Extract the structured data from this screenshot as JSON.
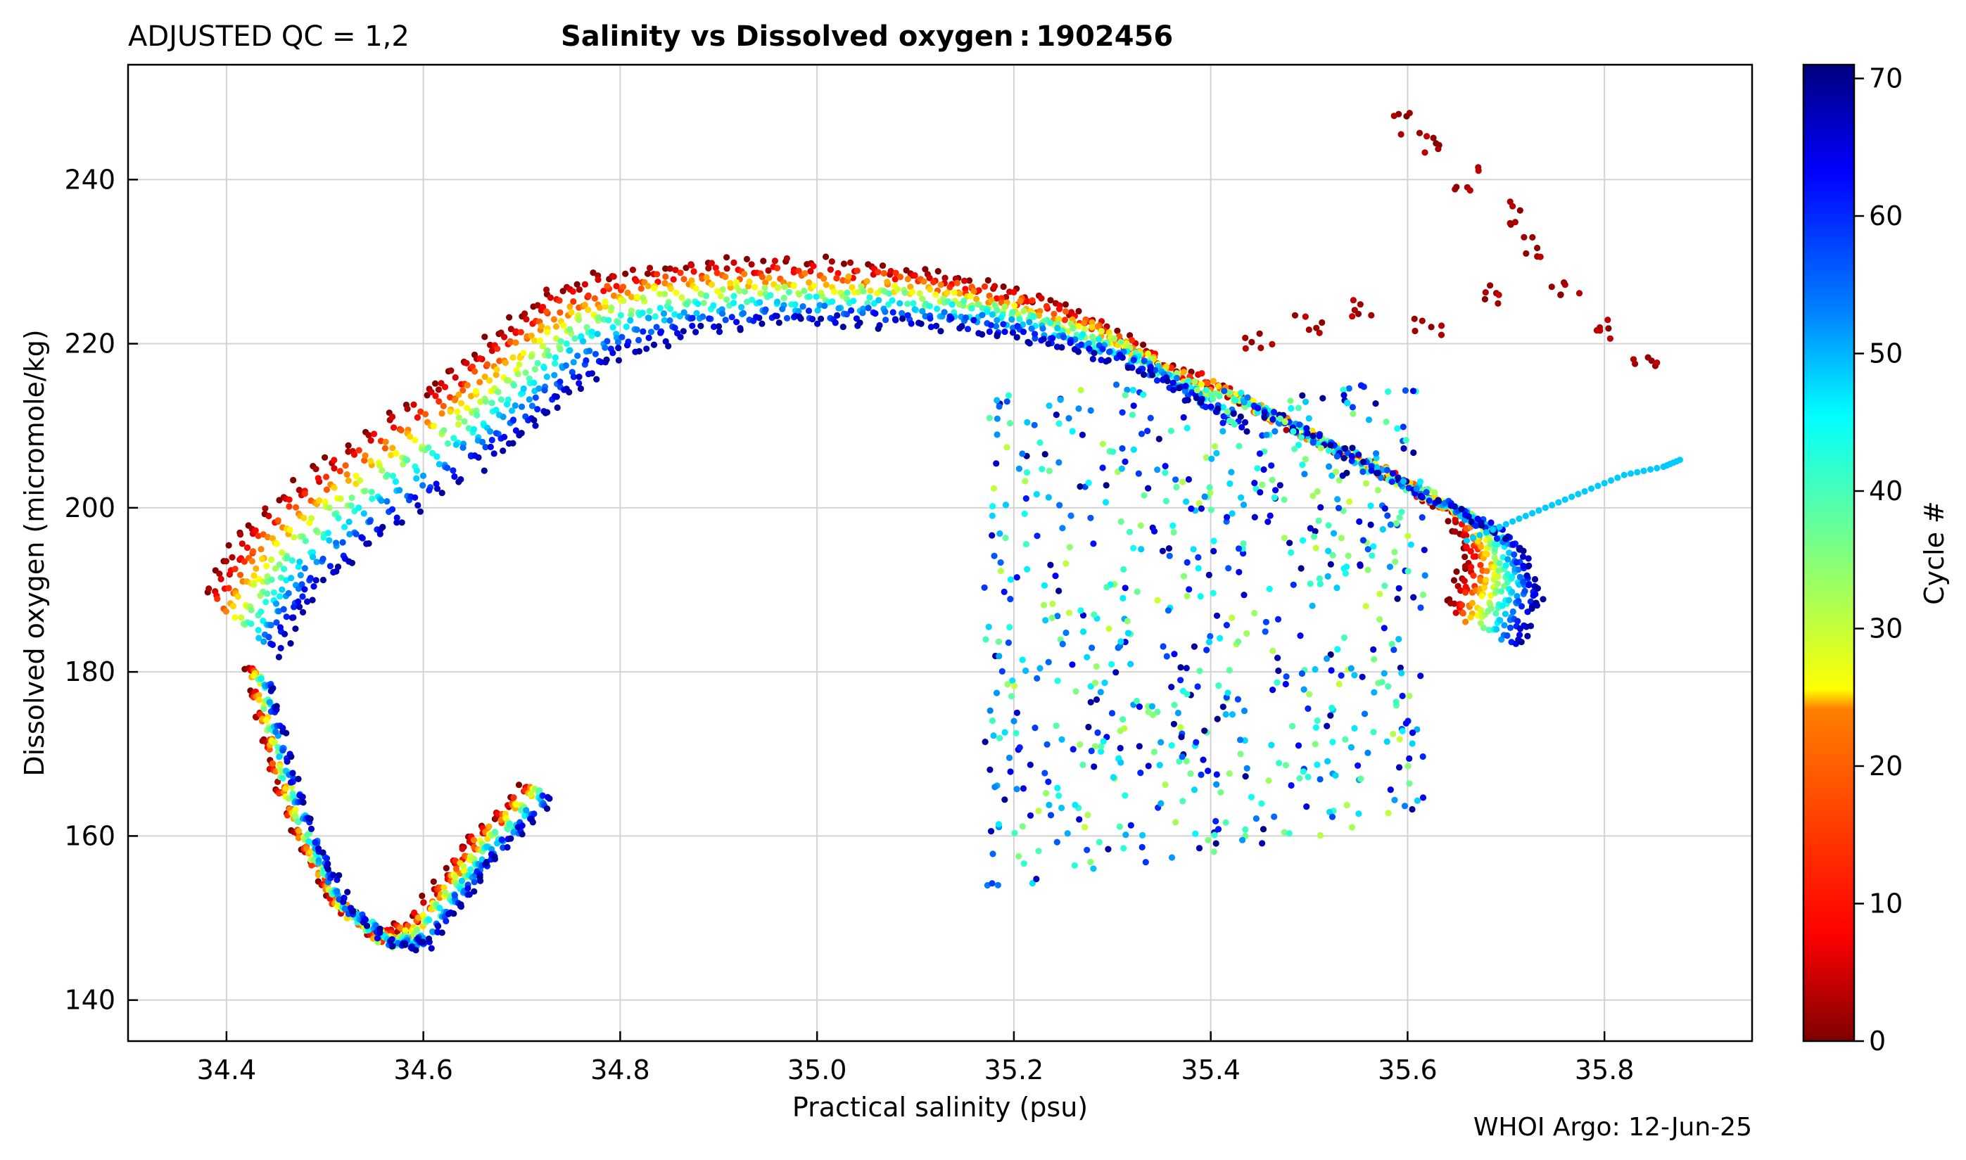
{
  "header": {
    "qc_label": "ADJUSTED QC = 1,2",
    "title": "Salinity vs Dissolved oxygen : 1902456",
    "footer": "WHOI Argo: 12-Jun-25"
  },
  "chart_data": {
    "type": "scatter",
    "xlabel": "Practical salinity  (psu)",
    "ylabel": "Dissolved oxygen  (micromole/kg)",
    "xlim": [
      34.3,
      35.95
    ],
    "ylim": [
      135,
      254
    ],
    "xticks": [
      34.4,
      34.6,
      34.8,
      35.0,
      35.2,
      35.4,
      35.6,
      35.8
    ],
    "xtick_labels": [
      "34.4",
      "34.6",
      "34.8",
      "35.0",
      "35.2",
      "35.4",
      "35.6",
      "35.8"
    ],
    "yticks": [
      140,
      160,
      180,
      200,
      220,
      240
    ],
    "ytick_labels": [
      "140",
      "160",
      "180",
      "200",
      "220",
      "240"
    ],
    "grid": true,
    "colorbar": {
      "label": "Cycle #",
      "range": [
        0,
        71
      ],
      "ticks": [
        0,
        10,
        20,
        30,
        40,
        50,
        60,
        70
      ],
      "tick_labels": [
        "0",
        "10",
        "20",
        "30",
        "40",
        "50",
        "60",
        "70"
      ],
      "colormap": "jet"
    },
    "profile_curve": [
      [
        34.38,
        190
      ],
      [
        34.42,
        198
      ],
      [
        34.5,
        206
      ],
      [
        34.6,
        214
      ],
      [
        34.66,
        220
      ],
      [
        34.72,
        226
      ],
      [
        34.8,
        229
      ],
      [
        34.9,
        230
      ],
      [
        35.0,
        230
      ],
      [
        35.1,
        229
      ],
      [
        35.18,
        227
      ],
      [
        35.26,
        224
      ],
      [
        35.32,
        220
      ],
      [
        35.4,
        215
      ],
      [
        35.48,
        210
      ],
      [
        35.58,
        204
      ],
      [
        35.64,
        200
      ],
      [
        35.66,
        194
      ],
      [
        35.64,
        188
      ]
    ],
    "intermediate_water_curve": [
      [
        34.42,
        180
      ],
      [
        34.44,
        170
      ],
      [
        34.47,
        160
      ],
      [
        34.5,
        153
      ],
      [
        34.55,
        148
      ],
      [
        34.58,
        149
      ],
      [
        34.62,
        155
      ],
      [
        34.65,
        160
      ],
      [
        34.7,
        166
      ]
    ],
    "cycle_offsets": {
      "salinity_per_cycle": 0.0011,
      "oxygen_per_cycle": -0.11
    },
    "deep_scatter_region": {
      "salinity_range": [
        35.17,
        35.62
      ],
      "oxygen_range": [
        153,
        215
      ],
      "cycles_range": [
        30,
        71
      ]
    },
    "early_cycle_high_oxygen": {
      "points": [
        [
          35.6,
          247
        ],
        [
          35.63,
          244
        ],
        [
          35.66,
          240
        ],
        [
          35.7,
          236
        ],
        [
          35.72,
          232
        ],
        [
          35.76,
          227
        ],
        [
          35.8,
          222
        ],
        [
          35.84,
          217
        ],
        [
          35.68,
          226
        ],
        [
          35.62,
          222
        ],
        [
          35.55,
          224
        ],
        [
          35.5,
          222
        ],
        [
          35.45,
          220
        ]
      ],
      "cycles": [
        0,
        5
      ]
    },
    "late_high_salinity_tail": {
      "points": [
        [
          35.66,
          196
        ],
        [
          35.7,
          198
        ],
        [
          35.74,
          200
        ],
        [
          35.78,
          202
        ],
        [
          35.82,
          204
        ],
        [
          35.86,
          205
        ],
        [
          35.88,
          206
        ]
      ],
      "cycle": 48
    },
    "legend": "none"
  },
  "colors": {
    "jet": [
      "#7f0000",
      "#ff0000",
      "#ff7f00",
      "#ffff00",
      "#7fff7f",
      "#00ffff",
      "#007fff",
      "#0000ff",
      "#00007f"
    ],
    "grid": "#d3d3d3",
    "axis": "#000000"
  }
}
